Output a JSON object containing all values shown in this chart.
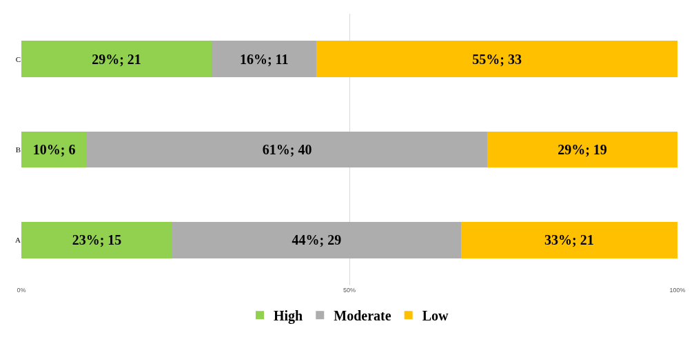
{
  "chart_data": {
    "type": "bar",
    "orientation": "horizontal",
    "stacked": true,
    "categories": [
      "C",
      "B",
      "A"
    ],
    "series": [
      {
        "name": "High",
        "color": "#92d050",
        "values": [
          29,
          10,
          23
        ],
        "value_labels": [
          "29%; 21",
          "10%; 6",
          "23%; 15"
        ]
      },
      {
        "name": "Moderate",
        "color": "#adadad",
        "values": [
          16,
          61,
          44
        ],
        "value_labels": [
          "16%; 11",
          "61%; 40",
          "44%; 29"
        ]
      },
      {
        "name": "Low",
        "color": "#ffc000",
        "values": [
          55,
          29,
          33
        ],
        "value_labels": [
          "55%; 33",
          "29%; 19",
          "33%; 21"
        ]
      }
    ],
    "xlim": [
      0,
      100
    ],
    "xticks": [
      {
        "value": 0,
        "label": "0%"
      },
      {
        "value": 50,
        "label": "50%"
      },
      {
        "value": 100,
        "label": "100%"
      }
    ],
    "grid": "x",
    "legend": "bottom"
  }
}
